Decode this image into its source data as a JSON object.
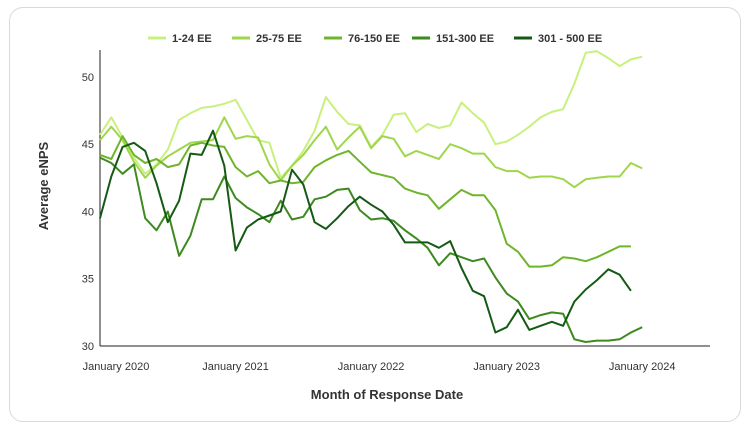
{
  "chart_data": {
    "type": "line",
    "title": "",
    "xlabel": "Month of Response Date",
    "ylabel": "Average eNPS",
    "ylim": [
      30,
      52
    ],
    "yticks": [
      30,
      35,
      40,
      45,
      50
    ],
    "x_tick_labels": [
      "January 2020",
      "January 2021",
      "January 2022",
      "January 2023",
      "January 2024"
    ],
    "x_tick_months": [
      0,
      12,
      24,
      36,
      48
    ],
    "x": [
      0,
      1,
      2,
      3,
      4,
      5,
      6,
      7,
      8,
      9,
      10,
      11,
      12,
      13,
      14,
      15,
      16,
      17,
      18,
      19,
      20,
      21,
      22,
      23,
      24,
      25,
      26,
      27,
      28,
      29,
      30,
      31,
      32,
      33,
      34,
      35,
      36,
      37,
      38,
      39,
      40,
      41,
      42,
      43,
      44,
      45,
      46,
      47,
      48,
      49,
      50,
      51,
      52,
      53
    ],
    "legend_position": "top",
    "grid": false,
    "series": [
      {
        "name": "1-24 EE",
        "color": "#c9f07f",
        "values": [
          45.7,
          47.0,
          45.5,
          44.0,
          42.8,
          43.5,
          44.6,
          46.8,
          47.3,
          47.7,
          47.8,
          48.0,
          48.3,
          46.8,
          45.3,
          45.1,
          42.5,
          43.4,
          44.5,
          46.0,
          48.5,
          47.4,
          46.5,
          46.4,
          44.8,
          45.7,
          47.2,
          47.3,
          45.9,
          46.5,
          46.2,
          46.4,
          48.1,
          47.3,
          46.6,
          45.0,
          45.2,
          45.7,
          46.3,
          47.0,
          47.4,
          47.6,
          49.5,
          51.8,
          51.9,
          51.4,
          50.8,
          51.3,
          51.5,
          null,
          null,
          null,
          null,
          null
        ]
      },
      {
        "name": "25-75 EE",
        "color": "#9fd64b",
        "values": [
          45.3,
          46.3,
          45.3,
          43.7,
          42.5,
          43.4,
          44.1,
          44.6,
          45.1,
          45.2,
          45.3,
          47.0,
          45.4,
          45.6,
          45.5,
          43.5,
          42.3,
          43.4,
          44.2,
          45.3,
          46.3,
          44.6,
          45.5,
          46.3,
          44.7,
          45.6,
          45.4,
          44.1,
          44.5,
          44.2,
          43.9,
          45.0,
          44.7,
          44.3,
          44.3,
          43.3,
          43.0,
          43.0,
          42.5,
          42.6,
          42.6,
          42.4,
          41.8,
          42.4,
          42.5,
          42.6,
          42.6,
          43.6,
          43.2,
          null,
          null,
          null,
          null,
          null
        ]
      },
      {
        "name": "76-150 EE",
        "color": "#6fb52c",
        "values": [
          44.2,
          43.9,
          45.6,
          44.2,
          43.6,
          43.9,
          43.3,
          43.5,
          44.9,
          45.1,
          44.9,
          44.8,
          43.3,
          42.6,
          43.0,
          42.1,
          42.3,
          42.1,
          42.2,
          43.3,
          43.8,
          44.2,
          44.5,
          43.7,
          42.9,
          42.7,
          42.5,
          41.7,
          41.4,
          41.2,
          40.2,
          40.9,
          41.6,
          41.2,
          41.2,
          40.1,
          37.6,
          37.0,
          35.9,
          35.9,
          36.0,
          36.6,
          36.5,
          36.3,
          36.6,
          37.0,
          37.4,
          37.4,
          null,
          null,
          null,
          null,
          null,
          null
        ]
      },
      {
        "name": "151-300 EE",
        "color": "#3d8a1f",
        "values": [
          44.0,
          43.6,
          42.8,
          43.5,
          39.5,
          38.6,
          40.0,
          36.7,
          38.2,
          40.9,
          40.9,
          42.6,
          41.0,
          40.3,
          39.8,
          39.2,
          40.8,
          39.4,
          39.6,
          40.9,
          41.1,
          41.6,
          41.7,
          40.1,
          39.4,
          39.5,
          39.3,
          38.6,
          38.0,
          37.3,
          36.0,
          36.9,
          36.6,
          36.3,
          36.5,
          35.1,
          33.9,
          33.3,
          32.0,
          32.3,
          32.5,
          32.4,
          30.5,
          30.3,
          30.4,
          30.4,
          30.5,
          31.0,
          31.4,
          null,
          null,
          null,
          null,
          null
        ]
      },
      {
        "name": "301 - 500 EE",
        "color": "#145a14",
        "values": [
          39.5,
          42.6,
          44.8,
          45.1,
          44.5,
          42.1,
          39.2,
          40.8,
          44.3,
          44.2,
          46.0,
          43.4,
          37.1,
          38.8,
          39.4,
          39.7,
          40.0,
          43.1,
          42.0,
          39.2,
          38.7,
          39.5,
          40.4,
          41.1,
          40.5,
          40.0,
          39.0,
          37.7,
          37.7,
          37.7,
          37.3,
          37.8,
          35.8,
          34.1,
          33.7,
          31.0,
          31.4,
          32.7,
          31.2,
          31.5,
          31.8,
          31.5,
          33.3,
          34.2,
          34.9,
          35.7,
          35.3,
          34.1,
          null,
          null,
          null,
          null,
          null,
          null
        ]
      }
    ]
  }
}
